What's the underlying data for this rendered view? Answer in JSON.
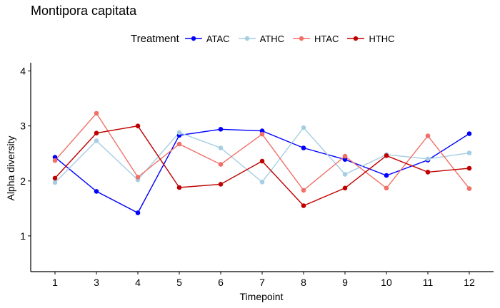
{
  "chart_data": {
    "type": "line",
    "title": "Montipora capitata",
    "xlabel": "Timepoint",
    "ylabel": "Alpha diversity",
    "legend_title": "Treatment",
    "legend_position": "top",
    "grid": false,
    "categories": [
      "1",
      "3",
      "4",
      "5",
      "6",
      "7",
      "8",
      "9",
      "10",
      "11",
      "12"
    ],
    "yticks": [
      "1",
      "2",
      "3",
      "4"
    ],
    "ylim": [
      0.35,
      4.15
    ],
    "series": [
      {
        "name": "ATAC",
        "color": "#0000ff",
        "values": [
          2.43,
          1.81,
          1.42,
          2.83,
          2.94,
          2.91,
          2.6,
          2.39,
          2.1,
          2.38,
          2.86
        ]
      },
      {
        "name": "ATHC",
        "color": "#a6cee3",
        "values": [
          1.97,
          2.73,
          2.02,
          2.88,
          2.6,
          1.98,
          2.97,
          2.12,
          2.48,
          2.4,
          2.51
        ]
      },
      {
        "name": "HTAC",
        "color": "#f07068",
        "values": [
          2.37,
          3.23,
          2.07,
          2.67,
          2.3,
          2.85,
          1.83,
          2.45,
          1.87,
          2.82,
          1.86
        ]
      },
      {
        "name": "HTHC",
        "color": "#c00000",
        "values": [
          2.05,
          2.87,
          3.0,
          1.88,
          1.94,
          2.36,
          1.55,
          1.87,
          2.46,
          2.16,
          2.23
        ]
      }
    ]
  }
}
